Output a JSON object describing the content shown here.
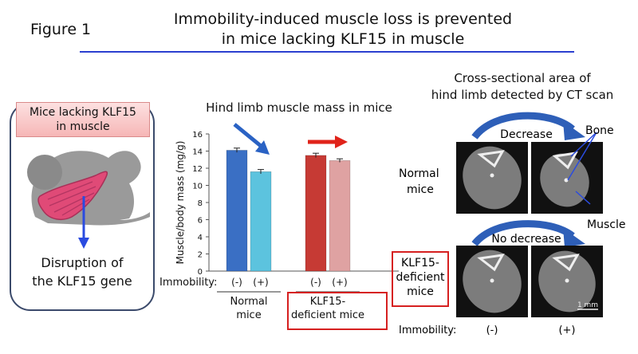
{
  "figure_label": "Figure 1",
  "title_line1": "Immobility-induced muscle loss is prevented",
  "title_line2": "in mice lacking KLF15 in muscle",
  "mouse_panel": {
    "banner_line1": "Mice lacking KLF15",
    "banner_line2": "in muscle",
    "caption_line1": "Disruption of",
    "caption_line2": "the KLF15 gene"
  },
  "chart_title": "Hind limb muscle mass in mice",
  "chart_data": {
    "type": "bar",
    "ylabel": "Muscle/body mass (mg/g)",
    "ylim": [
      0,
      16
    ],
    "yticks": [
      0,
      2,
      4,
      6,
      8,
      10,
      12,
      14,
      16
    ],
    "groups": [
      {
        "label_line1": "Normal",
        "label_line2": "mice",
        "bars": [
          {
            "immobility": "(-)",
            "value": 14.1,
            "error": 0.25,
            "color": "#3a6fc4"
          },
          {
            "immobility": "(+)",
            "value": 11.6,
            "error": 0.25,
            "color": "#5cc3de"
          }
        ]
      },
      {
        "label_line1": "KLF15-",
        "label_line2": "deficient mice",
        "bars": [
          {
            "immobility": "(-)",
            "value": 13.5,
            "error": 0.25,
            "color": "#c63a34"
          },
          {
            "immobility": "(+)",
            "value": 12.9,
            "error": 0.2,
            "color": "#dfa2a2"
          }
        ]
      }
    ],
    "immobility_label": "Immobility:"
  },
  "ct_panel": {
    "title_line1": "Cross-sectional area of",
    "title_line2": "hind limb detected by CT scan",
    "decrease": "Decrease",
    "no_decrease": "No decrease",
    "bone": "Bone",
    "muscle": "Muscle",
    "normal_line1": "Normal",
    "normal_line2": "mice",
    "klf_line1": "KLF15-",
    "klf_line2": "deficient",
    "klf_line3": "mice",
    "scale": "1 mm",
    "immobility_label": "Immobility:",
    "minus": "(-)",
    "plus": "(+)"
  },
  "colors": {
    "title_rule": "#2b3fd0",
    "arrow_blue": "#2a62c4",
    "arrow_red": "#e0231a",
    "box_red": "#d62020"
  }
}
